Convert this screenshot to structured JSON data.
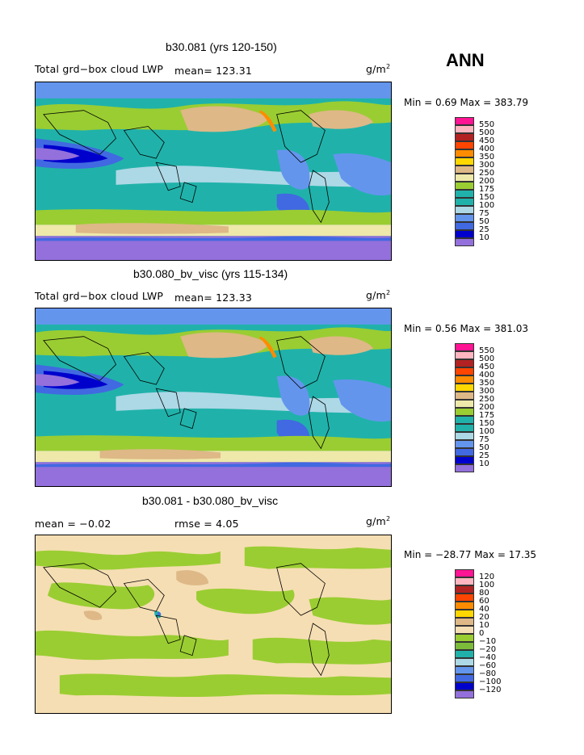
{
  "season": "ANN",
  "panels": [
    {
      "title": "b30.081 (yrs 120-150)",
      "left_text": "Total grd−box cloud LWP",
      "mean_text": "mean= 123.31",
      "units_base": "g/m",
      "units_exp": "2",
      "minmax": "Min =    0.69  Max = 383.79",
      "colorbar_labels": [
        "550",
        "500",
        "450",
        "400",
        "350",
        "300",
        "250",
        "200",
        "175",
        "150",
        "100",
        "75",
        "50",
        "25",
        "10"
      ],
      "colorbar_colors": [
        "#ff1493",
        "#ffb6c1",
        "#b22222",
        "#ff4500",
        "#ff8c00",
        "#ffd700",
        "#deb887",
        "#eee8aa",
        "#9acd32",
        "#20b2aa",
        "#20b2aa",
        "#add8e6",
        "#6495ed",
        "#4169e1",
        "#0000cd",
        "#9370db"
      ]
    },
    {
      "title": "b30.080_bv_visc (yrs 115-134)",
      "left_text": "Total grd−box cloud LWP",
      "mean_text": "mean= 123.33",
      "units_base": "g/m",
      "units_exp": "2",
      "minmax": "Min =    0.56  Max = 381.03",
      "colorbar_labels": [
        "550",
        "500",
        "450",
        "400",
        "350",
        "300",
        "250",
        "200",
        "175",
        "150",
        "100",
        "75",
        "50",
        "25",
        "10"
      ],
      "colorbar_colors": [
        "#ff1493",
        "#ffb6c1",
        "#b22222",
        "#ff4500",
        "#ff8c00",
        "#ffd700",
        "#deb887",
        "#eee8aa",
        "#9acd32",
        "#20b2aa",
        "#20b2aa",
        "#add8e6",
        "#6495ed",
        "#4169e1",
        "#0000cd",
        "#9370db"
      ]
    },
    {
      "title": "b30.081 - b30.080_bv_visc",
      "left_text": "mean =   −0.02",
      "mean_text": "rmse =     4.05",
      "units_base": "g/m",
      "units_exp": "2",
      "minmax": "Min = −28.77  Max =   17.35",
      "colorbar_labels": [
        "120",
        "100",
        "80",
        "60",
        "40",
        "20",
        "10",
        "0",
        "−10",
        "−20",
        "−40",
        "−60",
        "−80",
        "−100",
        "−120"
      ],
      "colorbar_colors": [
        "#ff1493",
        "#ffb6c1",
        "#b22222",
        "#ff4500",
        "#ff8c00",
        "#ffd700",
        "#deb887",
        "#f5deb3",
        "#9acd32",
        "#7cbb3a",
        "#20b2aa",
        "#add8e6",
        "#6495ed",
        "#4169e1",
        "#0000cd",
        "#9370db"
      ]
    }
  ],
  "map_colors": {
    "lavender": "#9370db",
    "blue": "#4169e1",
    "darkblue": "#0000cd",
    "lightblue": "#add8e6",
    "teal": "#20b2aa",
    "green": "#9acd32",
    "pale": "#eee8aa",
    "tan": "#deb887",
    "wheat": "#f5deb3",
    "orange": "#ff8c00",
    "yellow": "#ffd700"
  }
}
